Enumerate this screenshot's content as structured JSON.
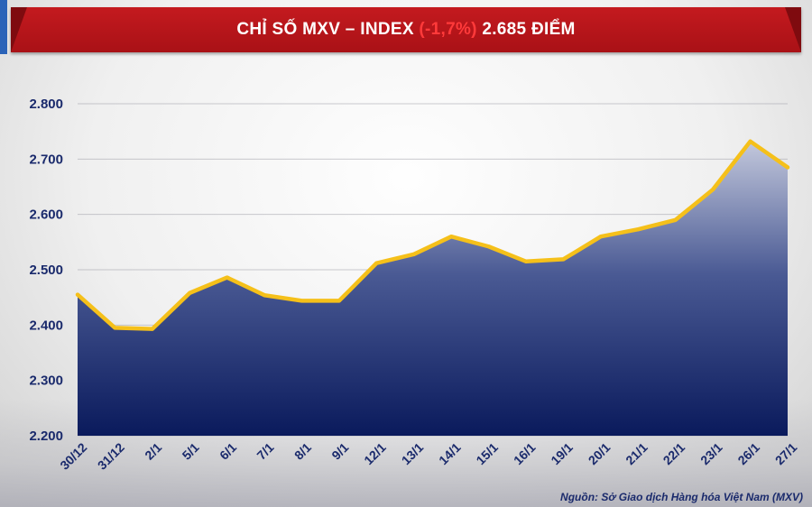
{
  "header": {
    "title_main": "CHỈ SỐ MXV – INDEX ",
    "title_change": "(-1,7%)",
    "title_value": " 2.685 ĐIỂM"
  },
  "source": "Nguồn: Sở Giao dịch Hàng hóa Việt Nam (MXV)",
  "colors": {
    "banner": "#c41a1f",
    "area_top": "#c3c8dc",
    "area_bottom": "#0a1a5c",
    "line": "#f5c01a",
    "axis_text": "#1a2a6c"
  },
  "chart_data": {
    "type": "area",
    "title": "CHỈ SỐ MXV – INDEX (-1,7%) 2.685 ĐIỂM",
    "xlabel": "",
    "ylabel": "",
    "ylim": [
      2200,
      2800
    ],
    "yticks": [
      2200,
      2300,
      2400,
      2500,
      2600,
      2700,
      2800
    ],
    "ytick_labels": [
      "2.200",
      "2.300",
      "2.400",
      "2.500",
      "2.600",
      "2.700",
      "2.800"
    ],
    "grid": true,
    "categories": [
      "30/12",
      "31/12",
      "2/1",
      "5/1",
      "6/1",
      "7/1",
      "8/1",
      "9/1",
      "12/1",
      "13/1",
      "14/1",
      "15/1",
      "16/1",
      "19/1",
      "20/1",
      "21/1",
      "22/1",
      "23/1",
      "26/1",
      "27/1"
    ],
    "values": [
      2455,
      2395,
      2393,
      2458,
      2486,
      2454,
      2444,
      2444,
      2512,
      2528,
      2560,
      2542,
      2515,
      2519,
      2560,
      2573,
      2590,
      2645,
      2732,
      2685
    ]
  }
}
